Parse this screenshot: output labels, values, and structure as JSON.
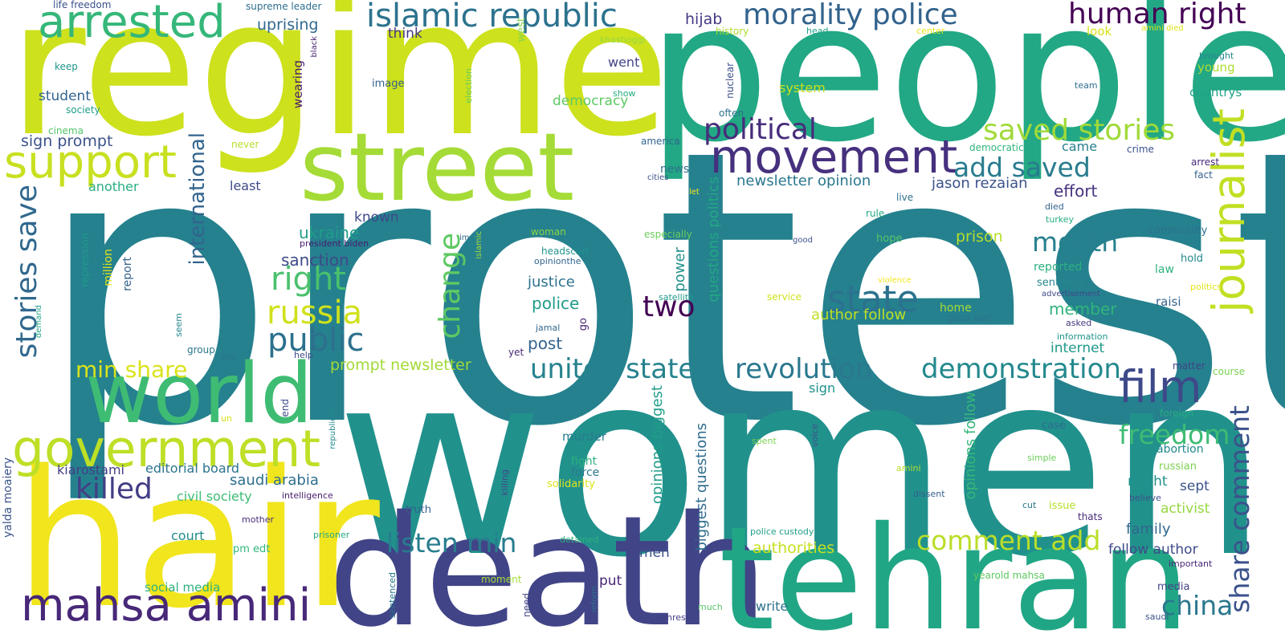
{
  "words": [
    {
      "text": "protest",
      "color": "#25818e"
    },
    {
      "text": "women",
      "color": "#21918c"
    },
    {
      "text": "regime",
      "color": "#cde11d"
    },
    {
      "text": "people",
      "color": "#22a884"
    },
    {
      "text": "death",
      "color": "#414487"
    },
    {
      "text": "hair",
      "color": "#f1e51d"
    },
    {
      "text": "tehran",
      "color": "#21a685"
    },
    {
      "text": "street",
      "color": "#a5db36"
    },
    {
      "text": "world",
      "color": "#3fbc73"
    },
    {
      "text": "journalist",
      "color": "#c2df23"
    },
    {
      "text": "government",
      "color": "#bddf26"
    },
    {
      "text": "mahsa amini",
      "color": "#482878"
    },
    {
      "text": "movement",
      "color": "#46307e"
    },
    {
      "text": "arrested",
      "color": "#35b779"
    },
    {
      "text": "support",
      "color": "#c8e020"
    },
    {
      "text": "islamic republic",
      "color": "#2c728e"
    },
    {
      "text": "morality police",
      "color": "#33638d"
    },
    {
      "text": "human right",
      "color": "#440154"
    },
    {
      "text": "film",
      "color": "#3e4989"
    },
    {
      "text": "united states",
      "color": "#26828e"
    },
    {
      "text": "revolution",
      "color": "#2a788e"
    },
    {
      "text": "demonstration",
      "color": "#23898e"
    },
    {
      "text": "state",
      "color": "#2c728e"
    },
    {
      "text": "stories save",
      "color": "#31688e"
    },
    {
      "text": "saved stories",
      "color": "#a0da39"
    },
    {
      "text": "share comment",
      "color": "#3b528b"
    },
    {
      "text": "russia",
      "color": "#d0e11c"
    },
    {
      "text": "public",
      "color": "#2d708e"
    },
    {
      "text": "killed",
      "color": "#433e85"
    },
    {
      "text": "political",
      "color": "#472d7b"
    },
    {
      "text": "right",
      "color": "#4ac16d"
    },
    {
      "text": "change",
      "color": "#5ec962"
    },
    {
      "text": "international",
      "color": "#32648e"
    },
    {
      "text": "add saved",
      "color": "#287c8e"
    },
    {
      "text": "comment add",
      "color": "#bade28"
    },
    {
      "text": "freedom",
      "color": "#3dbc74"
    },
    {
      "text": "listen min",
      "color": "#287d8e"
    },
    {
      "text": "month",
      "color": "#27808e"
    },
    {
      "text": "china",
      "color": "#2a788e"
    },
    {
      "text": "two",
      "color": "#440154"
    },
    {
      "text": "min share",
      "color": "#dae319"
    },
    {
      "text": "uprising",
      "color": "#31688e"
    },
    {
      "text": "hijab",
      "color": "#443a83"
    },
    {
      "text": "democracy",
      "color": "#5ec962"
    },
    {
      "text": "newsletter opinion",
      "color": "#2a788e"
    },
    {
      "text": "jason rezaian",
      "color": "#3b528b"
    },
    {
      "text": "effort",
      "color": "#46327e"
    },
    {
      "text": "ukraine",
      "color": "#1f9e89"
    },
    {
      "text": "sanction",
      "color": "#3e4a89"
    },
    {
      "text": "known",
      "color": "#3f4889"
    },
    {
      "text": "prison",
      "color": "#b5de2b"
    },
    {
      "text": "justice",
      "color": "#2c718e"
    },
    {
      "text": "police",
      "color": "#1e9c89"
    },
    {
      "text": "post",
      "color": "#33638d"
    },
    {
      "text": "prompt newsletter",
      "color": "#a2da37"
    },
    {
      "text": "author follow",
      "color": "#c0df25"
    },
    {
      "text": "member",
      "color": "#31b57b"
    },
    {
      "text": "internet",
      "color": "#1f998a"
    },
    {
      "text": "sign prompt",
      "color": "#3b528b"
    },
    {
      "text": "student",
      "color": "#32648e"
    },
    {
      "text": "another",
      "color": "#29af7f"
    },
    {
      "text": "least",
      "color": "#3e4989"
    },
    {
      "text": "think",
      "color": "#453781"
    },
    {
      "text": "wearing",
      "color": "#481b6d"
    },
    {
      "text": "went",
      "color": "#414487"
    },
    {
      "text": "system",
      "color": "#c8e020"
    },
    {
      "text": "look",
      "color": "#d8e219"
    },
    {
      "text": "young",
      "color": "#addc30"
    },
    {
      "text": "countrys",
      "color": "#1fa187"
    },
    {
      "text": "came",
      "color": "#277f8e"
    },
    {
      "text": "news",
      "color": "#2d708e"
    },
    {
      "text": "crime",
      "color": "#3b528b"
    },
    {
      "text": "arrest",
      "color": "#482878"
    },
    {
      "text": "fact",
      "color": "#355f8d"
    },
    {
      "text": "editorial board",
      "color": "#2b748e"
    },
    {
      "text": "kiarostami",
      "color": "#433e85"
    },
    {
      "text": "saudi arabia",
      "color": "#2e6e8e"
    },
    {
      "text": "civil society",
      "color": "#3dbc74"
    },
    {
      "text": "court",
      "color": "#238a8d"
    },
    {
      "text": "social media",
      "color": "#2db27d"
    },
    {
      "text": "yalda moaiery",
      "color": "#3a548c"
    },
    {
      "text": "supreme leader",
      "color": "#2e6f8e"
    },
    {
      "text": "life freedom",
      "color": "#3b518b"
    },
    {
      "text": "keep",
      "color": "#1f968b"
    },
    {
      "text": "society",
      "color": "#1f9f88"
    },
    {
      "text": "cinema",
      "color": "#52c569"
    },
    {
      "text": "never",
      "color": "#b8de29"
    },
    {
      "text": "repression",
      "color": "#1f998a"
    },
    {
      "text": "million",
      "color": "#e2e418"
    },
    {
      "text": "report",
      "color": "#34618d"
    },
    {
      "text": "group",
      "color": "#2a768e"
    },
    {
      "text": "life",
      "color": "#2c728e"
    },
    {
      "text": "help",
      "color": "#3e4a89"
    },
    {
      "text": "seem",
      "color": "#24878e"
    },
    {
      "text": "demand",
      "color": "#1fa287"
    },
    {
      "text": "president biden",
      "color": "#481c6e"
    },
    {
      "text": "image",
      "color": "#355f8d"
    },
    {
      "text": "election",
      "color": "#6ccd5a"
    },
    {
      "text": "black",
      "color": "#482173"
    },
    {
      "text": "west",
      "color": "#84d44b"
    },
    {
      "text": "khashoggi",
      "color": "#95d840"
    },
    {
      "text": "history",
      "color": "#addc30"
    },
    {
      "text": "head",
      "color": "#1fa088"
    },
    {
      "text": "center",
      "color": "#e8e419"
    },
    {
      "text": "amini died",
      "color": "#dde318"
    },
    {
      "text": "brought",
      "color": "#24868e"
    },
    {
      "text": "team",
      "color": "#2e6e8e"
    },
    {
      "text": "show",
      "color": "#26ad81"
    },
    {
      "text": "often",
      "color": "#2c718e"
    },
    {
      "text": "nuclear",
      "color": "#3c508b"
    },
    {
      "text": "america",
      "color": "#32648e"
    },
    {
      "text": "democratic",
      "color": "#31b57b"
    },
    {
      "text": "cities",
      "color": "#3b518b"
    },
    {
      "text": "let",
      "color": "#f1e51d"
    },
    {
      "text": "live",
      "color": "#2d708e"
    },
    {
      "text": "died",
      "color": "#33638d"
    },
    {
      "text": "turkey",
      "color": "#29af7f"
    },
    {
      "text": "rule",
      "color": "#22a884"
    },
    {
      "text": "hope",
      "color": "#56c667"
    },
    {
      "text": "community",
      "color": "#2d708e"
    },
    {
      "text": "hold",
      "color": "#23888e"
    },
    {
      "text": "law",
      "color": "#2db27d"
    },
    {
      "text": "reported",
      "color": "#2ab07f"
    },
    {
      "text": "sentence",
      "color": "#24878e"
    },
    {
      "text": "advertisement",
      "color": "#3e4989"
    },
    {
      "text": "raisi",
      "color": "#33638d"
    },
    {
      "text": "politics",
      "color": "#e2e418"
    },
    {
      "text": "asked",
      "color": "#453882"
    },
    {
      "text": "information",
      "color": "#1f958b"
    },
    {
      "text": "matter",
      "color": "#414487"
    },
    {
      "text": "course",
      "color": "#7ad151"
    },
    {
      "text": "foreign",
      "color": "#26ad81"
    },
    {
      "text": "abortion",
      "color": "#23888e"
    },
    {
      "text": "russian",
      "color": "#7ad151"
    },
    {
      "text": "might",
      "color": "#20928c"
    },
    {
      "text": "sept",
      "color": "#3b528b"
    },
    {
      "text": "activist",
      "color": "#95d840"
    },
    {
      "text": "family",
      "color": "#31688e"
    },
    {
      "text": "follow author",
      "color": "#3e4989"
    },
    {
      "text": "believe",
      "color": "#3b528b"
    },
    {
      "text": "thats",
      "color": "#472c7a"
    },
    {
      "text": "issue",
      "color": "#b5de2b"
    },
    {
      "text": "cut",
      "color": "#2a788e"
    },
    {
      "text": "important",
      "color": "#482878"
    },
    {
      "text": "media",
      "color": "#414487"
    },
    {
      "text": "saudi",
      "color": "#3b528b"
    },
    {
      "text": "headscarf",
      "color": "#20938c"
    },
    {
      "text": "opinionthe",
      "color": "#32648e"
    },
    {
      "text": "woman",
      "color": "#8bd646"
    },
    {
      "text": "especially",
      "color": "#6ccd5a"
    },
    {
      "text": "good",
      "color": "#3b528b"
    },
    {
      "text": "violence",
      "color": "#f4e61e"
    },
    {
      "text": "service",
      "color": "#d0e11c"
    },
    {
      "text": "satellite",
      "color": "#1f9a8a"
    },
    {
      "text": "power",
      "color": "#21918c"
    },
    {
      "text": "home",
      "color": "#a5db36"
    },
    {
      "text": "gaza war",
      "color": "#2b748e"
    },
    {
      "text": "jamal",
      "color": "#31688e"
    },
    {
      "text": "go",
      "color": "#482475"
    },
    {
      "text": "yet",
      "color": "#482878"
    },
    {
      "text": "questions politics",
      "color": "#22a884"
    },
    {
      "text": "opinions biggest",
      "color": "#1f9e89"
    },
    {
      "text": "biggest questions",
      "color": "#2f6c8e"
    },
    {
      "text": "opinions follow",
      "color": "#35b779"
    },
    {
      "text": "sign",
      "color": "#20928c"
    },
    {
      "text": "murder",
      "color": "#287d8e"
    },
    {
      "text": "fight",
      "color": "#2ab07f"
    },
    {
      "text": "force",
      "color": "#2a788e"
    },
    {
      "text": "solidarity",
      "color": "#dde318"
    },
    {
      "text": "case",
      "color": "#2f6c8e"
    },
    {
      "text": "simple",
      "color": "#6ccd5a"
    },
    {
      "text": "amini",
      "color": "#b8de29"
    },
    {
      "text": "dissent",
      "color": "#34608d"
    },
    {
      "text": "voice",
      "color": "#3b528b"
    },
    {
      "text": "spent",
      "color": "#7ad151"
    },
    {
      "text": "authorities",
      "color": "#c8e020"
    },
    {
      "text": "men",
      "color": "#3b528b"
    },
    {
      "text": "put",
      "color": "#482475"
    },
    {
      "text": "write",
      "color": "#2c728e"
    },
    {
      "text": "police custody",
      "color": "#1f9e89"
    },
    {
      "text": "yearold mahsa",
      "color": "#5ec962"
    },
    {
      "text": "moment",
      "color": "#a5db36"
    },
    {
      "text": "reform",
      "color": "#2c728e"
    },
    {
      "text": "need",
      "color": "#414487"
    },
    {
      "text": "much",
      "color": "#56c667"
    },
    {
      "text": "unrest",
      "color": "#433e85"
    },
    {
      "text": "detained",
      "color": "#2db27d"
    },
    {
      "text": "killing",
      "color": "#3e4a89"
    },
    {
      "text": "truth",
      "color": "#34618d"
    },
    {
      "text": "sentenced",
      "color": "#2a768e"
    },
    {
      "text": "end",
      "color": "#3e4a89"
    },
    {
      "text": "un",
      "color": "#d8e219"
    },
    {
      "text": "republican",
      "color": "#238a8d"
    },
    {
      "text": "intelligence",
      "color": "#481c6e"
    },
    {
      "text": "mother",
      "color": "#472d7b"
    },
    {
      "text": "prisoner",
      "color": "#22a884"
    },
    {
      "text": "pm edt",
      "color": "#32b67a"
    },
    {
      "text": "im",
      "color": "#31688e"
    },
    {
      "text": "islamic",
      "color": "#a5db36"
    }
  ]
}
